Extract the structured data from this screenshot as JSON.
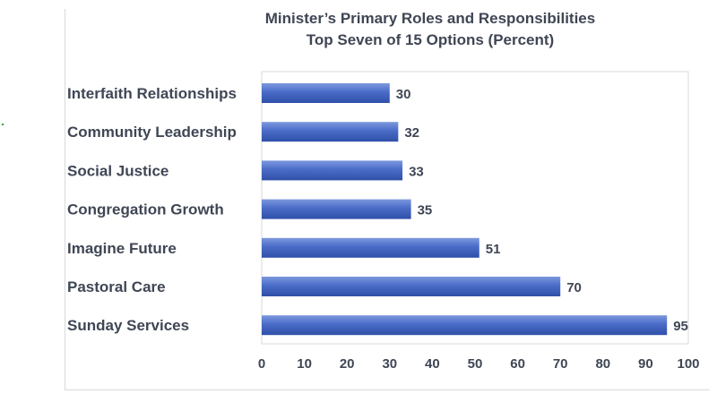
{
  "chart_data": {
    "type": "bar",
    "orientation": "horizontal",
    "title": "Minister’s Primary Roles and Responsibilities",
    "subtitle": "Top Seven of 15 Options (Percent)",
    "categories": [
      "Interfaith Relationships",
      "Community Leadership",
      "Social Justice",
      "Congregation Growth",
      "Imagine Future",
      "Pastoral Care",
      "Sunday Services"
    ],
    "values": [
      30,
      32,
      33,
      35,
      51,
      70,
      95
    ],
    "xlim": [
      0,
      100
    ],
    "xticks": [
      0,
      10,
      20,
      30,
      40,
      50,
      60,
      70,
      80,
      90,
      100
    ],
    "xlabel": "",
    "ylabel": "",
    "grid": false,
    "legend": "none",
    "bar_color": "#4a6cc8"
  }
}
